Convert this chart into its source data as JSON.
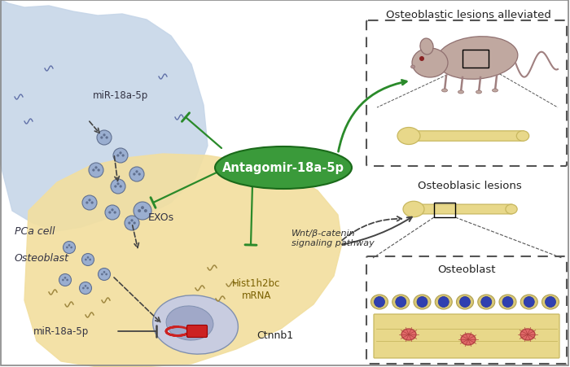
{
  "bg_color": "#ffffff",
  "pca_cell_color": "#c5d5e8",
  "pca_cell_color_edge": "#a8bdd4",
  "osteoblast_cell_color": "#f2dfa0",
  "osteoblast_cell_edge": "#d4bc70",
  "nucleus_color": "#c8cce0",
  "nucleus_dark": "#a0a8c8",
  "exo_fill": "#9aaed0",
  "exo_edge": "#607090",
  "green_fill": "#3a9a3a",
  "green_edge": "#1a6a1a",
  "green_line": "#2a8a2a",
  "black_arrow": "#222222",
  "dashed_color": "#444444",
  "bone_fill": "#e8d88a",
  "bone_edge": "#c8b860",
  "mouse_fill": "#c0a8a0",
  "mouse_edge": "#907070",
  "cell_fill": "#d8c878",
  "cell_edge": "#b0a050",
  "nuc_fill": "#3040b0",
  "pink_fill": "#e06868",
  "pink_edge": "#b04040",
  "red_fill": "#cc2222",
  "wave_blue": "#6070a8",
  "wave_tan": "#a08840",
  "label_pca": "PCa cell",
  "label_exos": "EXOs",
  "label_osteo": "Osteoblast",
  "label_mir_top": "miR-18a-5p",
  "label_mir_bot": "miR-18a-5p",
  "label_antagomir": "Antagomir-18a-5p",
  "label_hist": "Hist1h2bc\nmRNA",
  "label_ctnnb1": "Ctnnb1",
  "label_wnt": "Wnt/β-catenin\nsignaling pathway",
  "label_top_right": "Osteoblastic lesions alleviated",
  "label_mid_right": "Osteoblasic lesions",
  "label_bot_right": "Osteoblast",
  "border_color": "#888888"
}
